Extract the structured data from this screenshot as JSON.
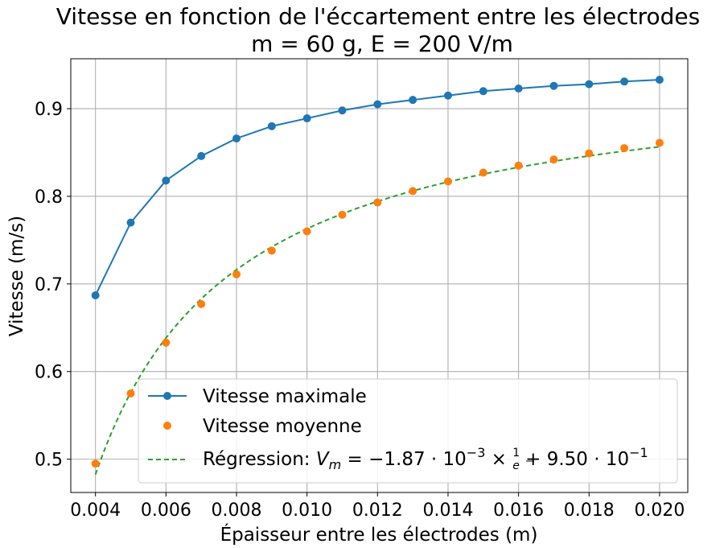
{
  "chart_data": {
    "type": "line",
    "title": "Vitesse en fonction de l'éccartement entre les électrodes",
    "subtitle": "m = 60 g, E = 200 V/m",
    "xlabel": "Épaisseur entre les électrodes (m)",
    "ylabel": "Vitesse (m/s)",
    "xlim": [
      0.0033,
      0.0208
    ],
    "ylim": [
      0.462,
      0.957
    ],
    "x_ticks": [
      0.004,
      0.006,
      0.008,
      0.01,
      0.012,
      0.014,
      0.016,
      0.018,
      0.02
    ],
    "x_tick_labels": [
      "0.004",
      "0.006",
      "0.008",
      "0.010",
      "0.012",
      "0.014",
      "0.016",
      "0.018",
      "0.020"
    ],
    "y_ticks": [
      0.5,
      0.6,
      0.7,
      0.8,
      0.9
    ],
    "y_tick_labels": [
      "0.5",
      "0.6",
      "0.7",
      "0.8",
      "0.9"
    ],
    "grid": true,
    "legend_position": "lower-right",
    "x": [
      0.004,
      0.005,
      0.006,
      0.007,
      0.008,
      0.009,
      0.01,
      0.011,
      0.012,
      0.013,
      0.014,
      0.015,
      0.016,
      0.017,
      0.018,
      0.019,
      0.02
    ],
    "series": [
      {
        "name": "Vitesse maximale",
        "style": "line-marker",
        "color": "#1f77b4",
        "values": [
          0.687,
          0.77,
          0.818,
          0.846,
          0.866,
          0.88,
          0.889,
          0.898,
          0.905,
          0.91,
          0.915,
          0.92,
          0.923,
          0.926,
          0.928,
          0.931,
          0.933
        ]
      },
      {
        "name": "Vitesse moyenne",
        "style": "marker",
        "color": "#ff7f0e",
        "values": [
          0.495,
          0.575,
          0.633,
          0.677,
          0.711,
          0.738,
          0.76,
          0.779,
          0.793,
          0.806,
          0.817,
          0.827,
          0.835,
          0.842,
          0.849,
          0.855,
          0.861
        ]
      },
      {
        "name": "Régression",
        "style": "dashed",
        "color": "#2ca02c",
        "formula": "V_m = -1.87·10^-3 × 1/e + 9.50·10^-1",
        "a": -0.00187,
        "b": 0.95
      }
    ],
    "legend": {
      "entry_1": "Vitesse maximale",
      "entry_2": "Vitesse moyenne",
      "entry_3_prefix": "Régression: ",
      "entry_3_var": "V",
      "entry_3_sub": "m",
      "entry_3_eq": " = −1.87 · 10",
      "entry_3_exp1": "−3",
      "entry_3_times": " × ",
      "entry_3_frac_num": "1",
      "entry_3_frac_den": "e",
      "entry_3_plus": " + 9.50 · 10",
      "entry_3_exp2": "−1"
    }
  }
}
